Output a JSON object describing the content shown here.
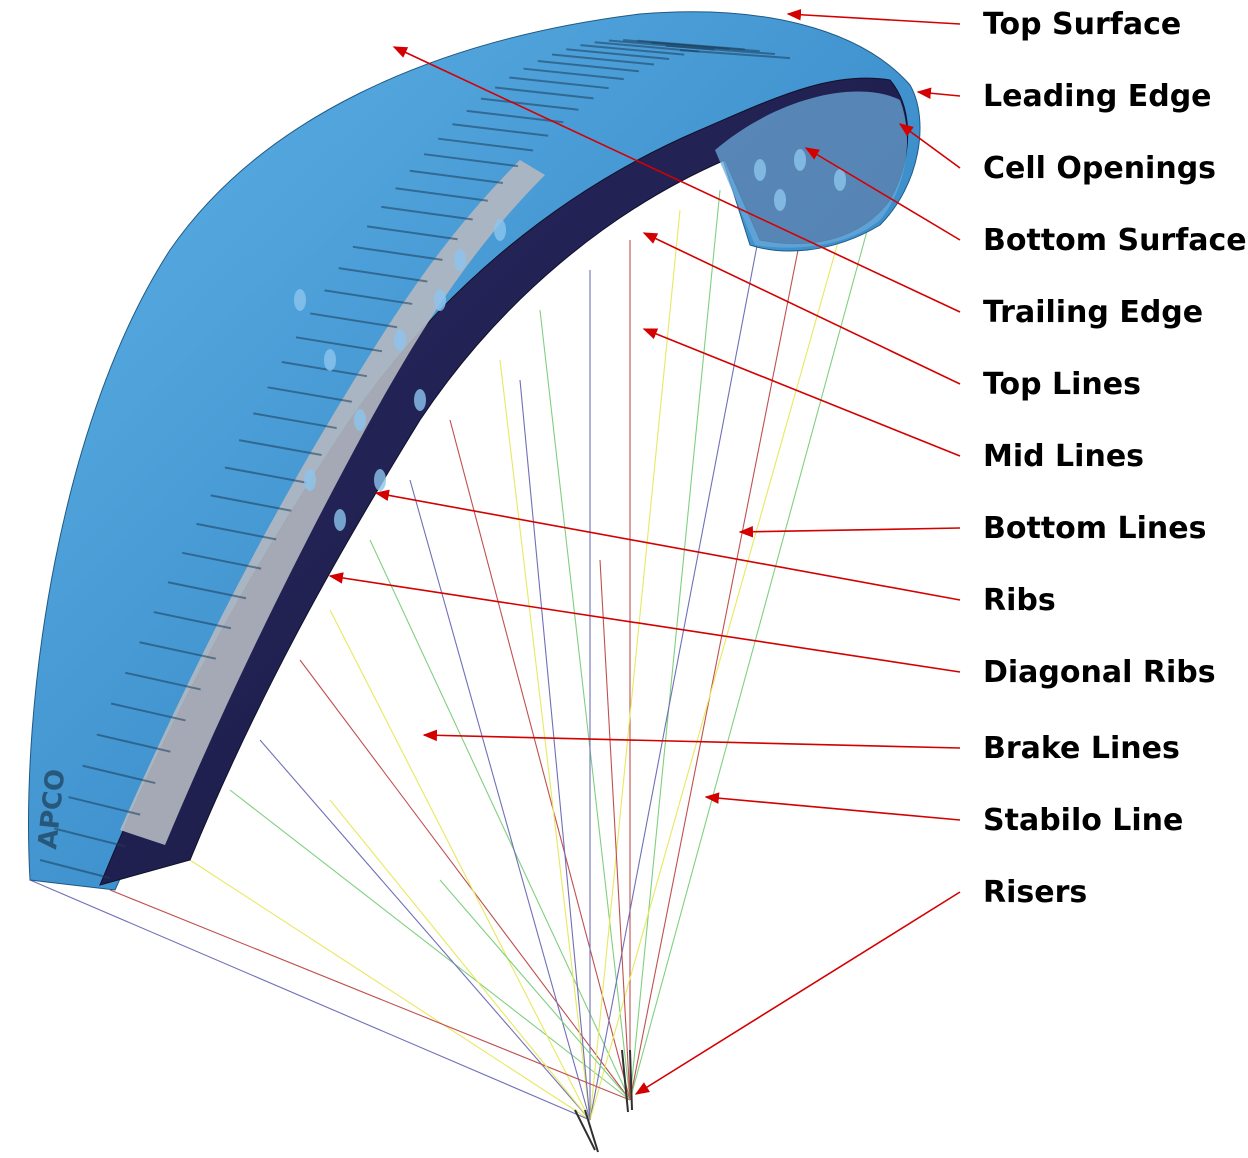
{
  "labels": [
    "Top Surface",
    "Leading Edge",
    "Cell Openings",
    "Bottom Surface",
    "Trailing Edge",
    "Top Lines",
    "Mid Lines",
    "Bottom Lines",
    "Ribs",
    "Diagonal Ribs",
    "Brake Lines",
    "Stabilo Line",
    "Risers"
  ],
  "wing_watermark": "APCO",
  "colors": {
    "top_surface": "#3d8fcc",
    "top_surface_light": "#5fb2e6",
    "underside": "#24245a",
    "underside_dark": "#16163a",
    "ribs_grey": "#b4b8c0",
    "pointer": "#d40000",
    "line_yellow": "#e8e860",
    "line_green": "#80d080",
    "line_purple": "#7070b8",
    "line_red": "#c05050",
    "riser": "#303030"
  }
}
